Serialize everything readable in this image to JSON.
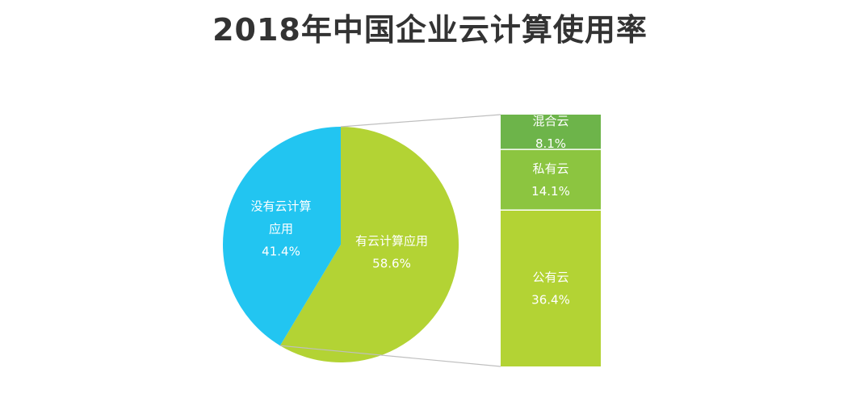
{
  "title": "2018年中国企业云计算使用率",
  "colors": {
    "no_cloud": "#22c5f1",
    "cloud": "#b3d334",
    "hybrid": "#6db44a",
    "private": "#8cc540",
    "public": "#b3d334",
    "connector": "#bfbfbf"
  },
  "chart_data": [
    {
      "type": "pie",
      "slices": [
        {
          "name": "有云计算应用",
          "label_lines": [
            "有云计算应用"
          ],
          "value": 58.6,
          "value_label": "58.6%"
        },
        {
          "name": "没有云计算应用",
          "label_lines": [
            "没有云计算",
            "应用"
          ],
          "value": 41.4,
          "value_label": "41.4%"
        }
      ]
    },
    {
      "type": "bar",
      "stacked": true,
      "breakdown_of": "有云计算应用",
      "segments": [
        {
          "name": "混合云",
          "value": 8.1,
          "value_label": "8.1%"
        },
        {
          "name": "私有云",
          "value": 14.1,
          "value_label": "14.1%"
        },
        {
          "name": "公有云",
          "value": 36.4,
          "value_label": "36.4%"
        }
      ]
    }
  ]
}
